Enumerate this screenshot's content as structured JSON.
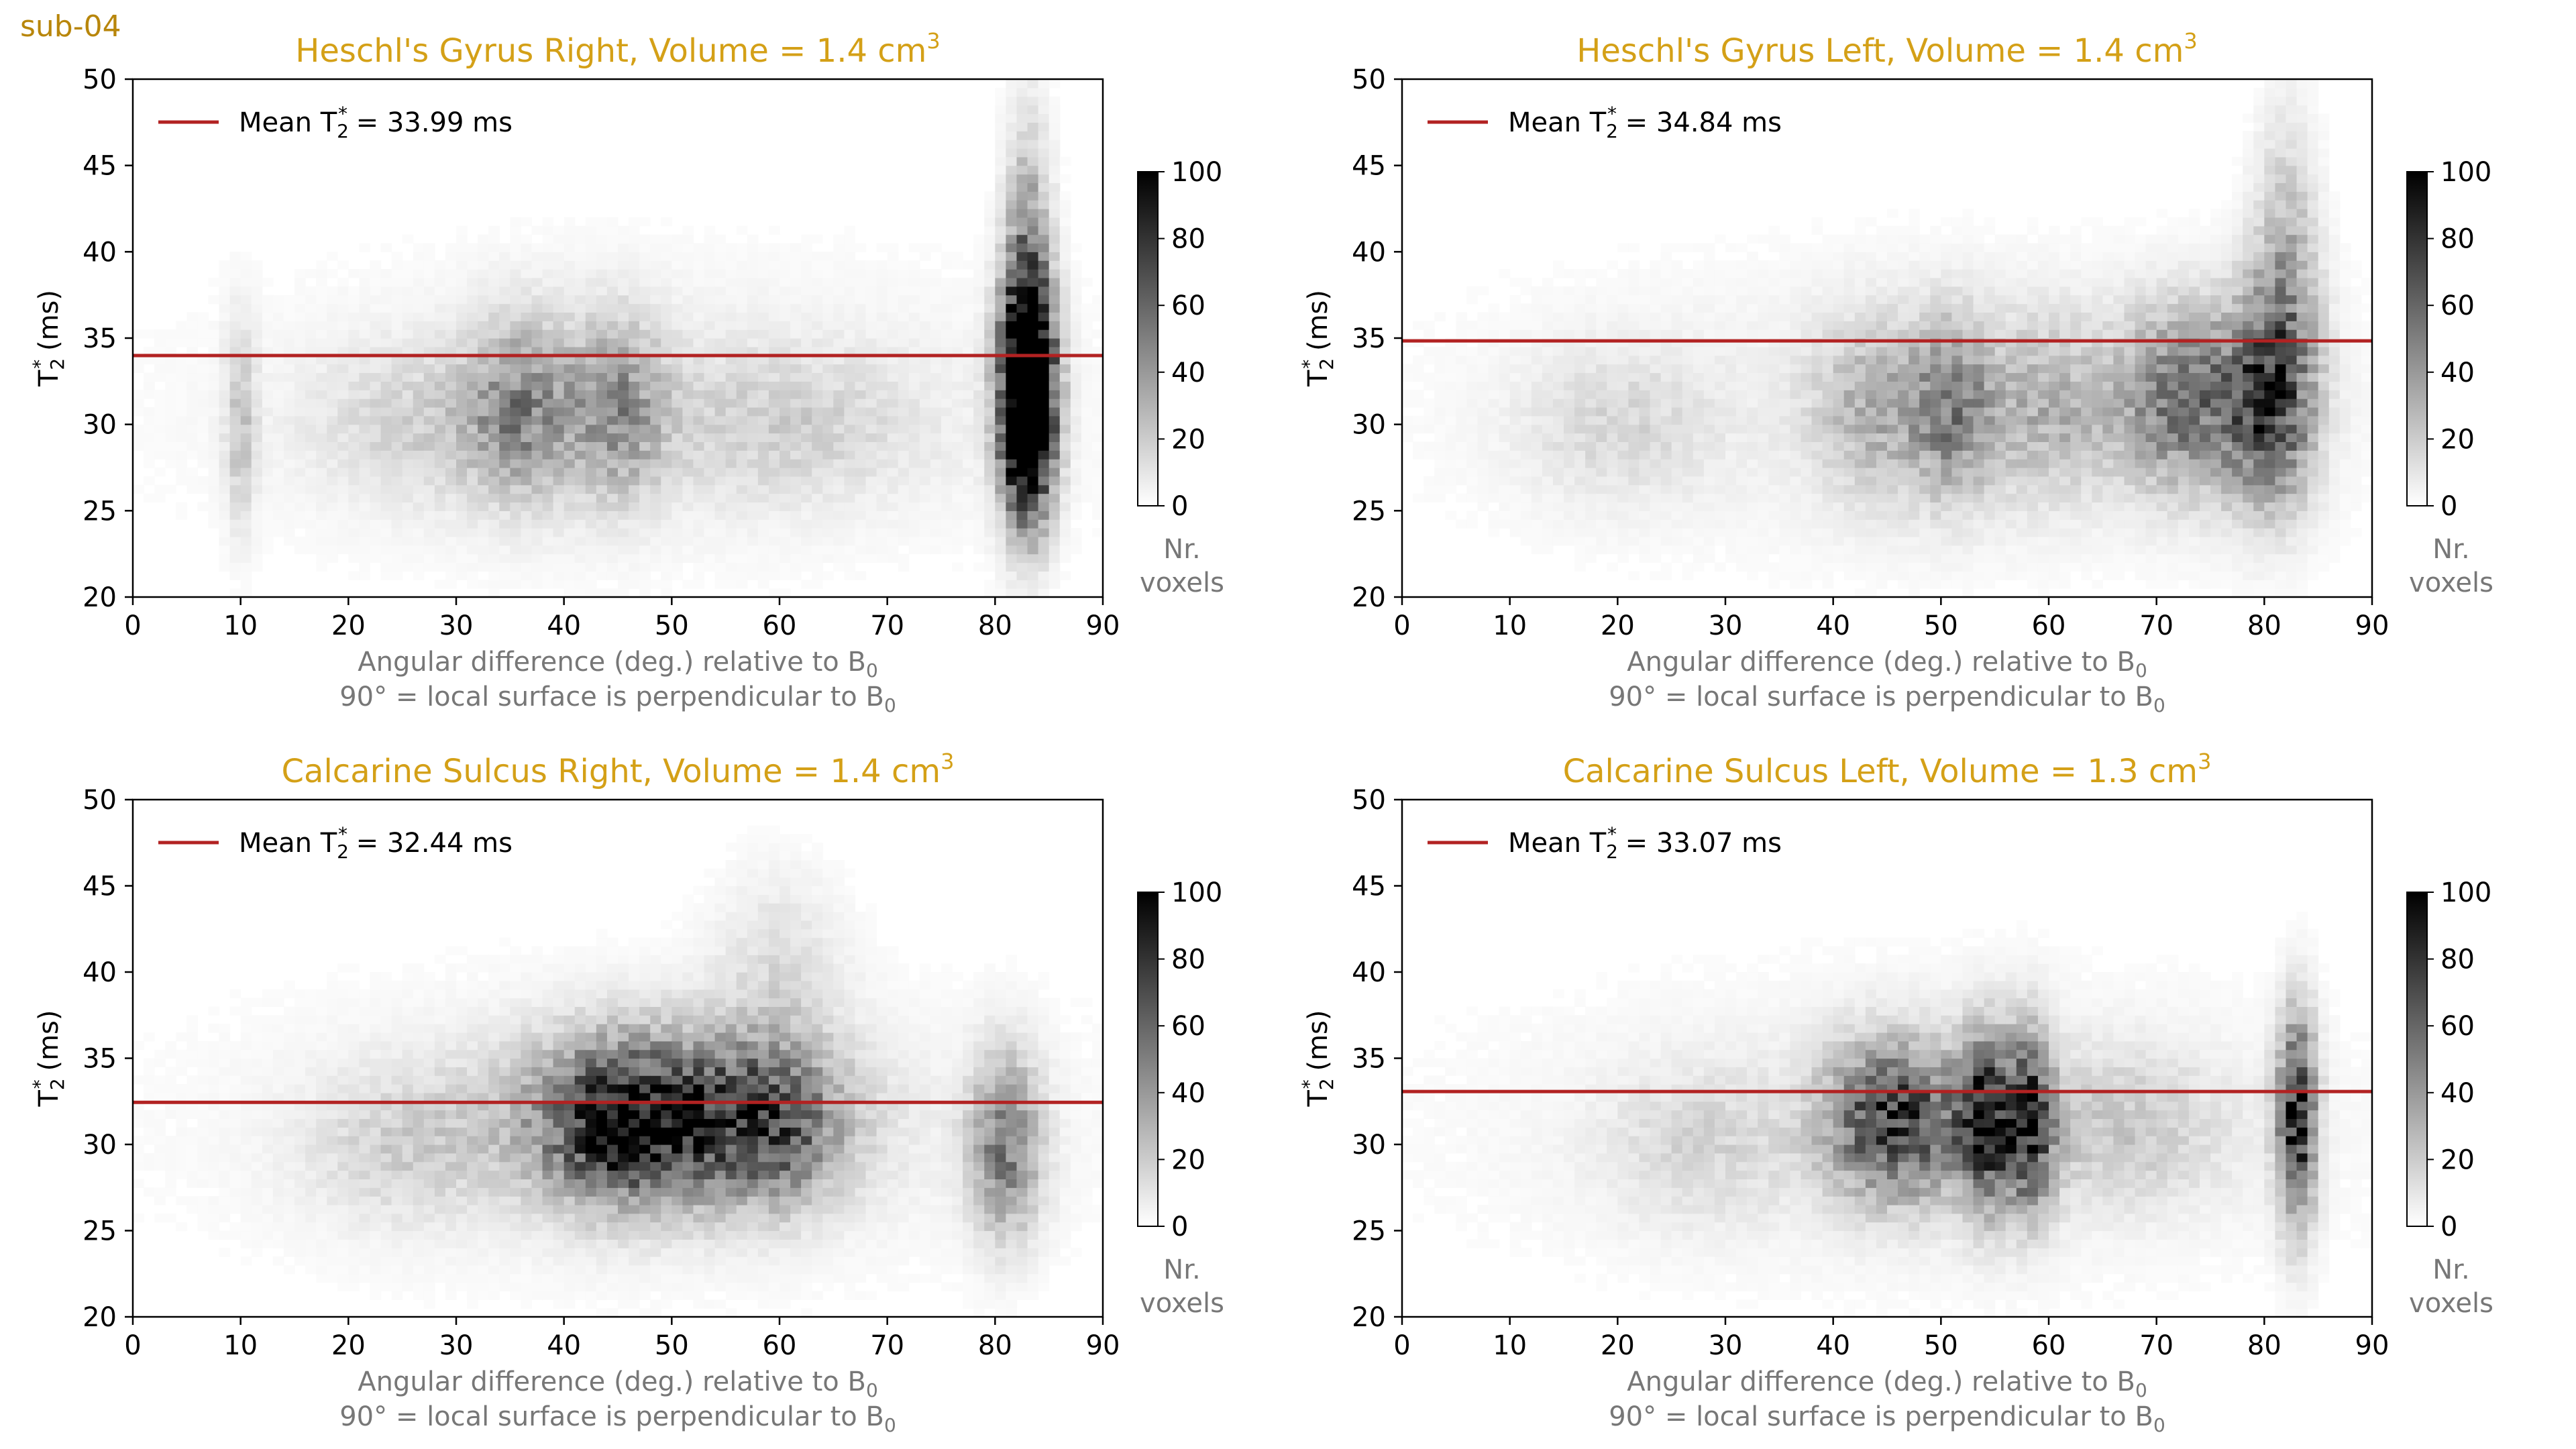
{
  "subject_label": "sub-04",
  "colors": {
    "title": "#d4a017",
    "mean_line": "#b22222",
    "axis_label_gray": "#777777",
    "axis": "#000000"
  },
  "colorbar": {
    "ticks": [
      "0",
      "20",
      "40",
      "60",
      "80",
      "100"
    ],
    "label_line1": "Nr.",
    "label_line2": "voxels",
    "range": [
      0,
      100
    ]
  },
  "chart_data": [
    {
      "type": "heatmap",
      "title": "Heschl's Gyrus Right, Volume = 1.4 cm",
      "title_sup": "3",
      "xlabel_line1": "Angular difference (deg.) relative to B",
      "xlabel_line1_sub": "0",
      "xlabel_line2": "90° = local surface is perpendicular to B",
      "xlabel_line2_sub": "0",
      "ylabel": "T",
      "ylabel_sub": "2",
      "ylabel_sup": "*",
      "ylabel_unit": " (ms)",
      "xlim": [
        0,
        90
      ],
      "ylim": [
        20,
        50
      ],
      "xticks": [
        "0",
        "10",
        "20",
        "30",
        "40",
        "50",
        "60",
        "70",
        "80",
        "90"
      ],
      "yticks": [
        "20",
        "25",
        "30",
        "35",
        "40",
        "45",
        "50"
      ],
      "mean_t2": 33.99,
      "legend_prefix": "Mean T",
      "legend_sub": "2",
      "legend_sup": "*",
      "legend_value": " = 33.99 ms",
      "blobs": [
        {
          "x": 83,
          "y": 31.5,
          "sx": 1.6,
          "sy": 4.2,
          "w": 190
        },
        {
          "x": 83,
          "y": 38,
          "sx": 1.4,
          "sy": 6,
          "w": 45
        },
        {
          "x": 36,
          "y": 31,
          "sx": 3.5,
          "sy": 3.5,
          "w": 38
        },
        {
          "x": 45,
          "y": 31,
          "sx": 3,
          "sy": 3.5,
          "w": 36
        },
        {
          "x": 10,
          "y": 30,
          "sx": 1,
          "sy": 4,
          "w": 20
        },
        {
          "x": 27,
          "y": 30,
          "sx": 7,
          "sy": 3,
          "w": 14
        },
        {
          "x": 60,
          "y": 30,
          "sx": 9,
          "sy": 3,
          "w": 14
        }
      ]
    },
    {
      "type": "heatmap",
      "title": "Heschl's Gyrus Left, Volume = 1.4 cm",
      "title_sup": "3",
      "xlabel_line1": "Angular difference (deg.) relative to B",
      "xlabel_line1_sub": "0",
      "xlabel_line2": "90° = local surface is perpendicular to B",
      "xlabel_line2_sub": "0",
      "ylabel": "T",
      "ylabel_sub": "2",
      "ylabel_sup": "*",
      "ylabel_unit": " (ms)",
      "xlim": [
        0,
        90
      ],
      "ylim": [
        20,
        50
      ],
      "xticks": [
        "0",
        "10",
        "20",
        "30",
        "40",
        "50",
        "60",
        "70",
        "80",
        "90"
      ],
      "yticks": [
        "20",
        "25",
        "30",
        "35",
        "40",
        "45",
        "50"
      ],
      "mean_t2": 34.84,
      "legend_prefix": "Mean T",
      "legend_sub": "2",
      "legend_sup": "*",
      "legend_value": " = 34.84 ms",
      "blobs": [
        {
          "x": 80,
          "y": 31.5,
          "sx": 3,
          "sy": 4,
          "w": 70
        },
        {
          "x": 72,
          "y": 31.5,
          "sx": 3.5,
          "sy": 3.5,
          "w": 50
        },
        {
          "x": 82,
          "y": 38,
          "sx": 2,
          "sy": 6,
          "w": 30
        },
        {
          "x": 51,
          "y": 31,
          "sx": 2.5,
          "sy": 3.5,
          "w": 38
        },
        {
          "x": 44,
          "y": 31,
          "sx": 4,
          "sy": 3.5,
          "w": 26
        },
        {
          "x": 60,
          "y": 31,
          "sx": 5,
          "sy": 3.5,
          "w": 26
        },
        {
          "x": 20,
          "y": 30,
          "sx": 6,
          "sy": 3,
          "w": 12
        }
      ]
    },
    {
      "type": "heatmap",
      "title": "Calcarine Sulcus Right, Volume = 1.4 cm",
      "title_sup": "3",
      "xlabel_line1": "Angular difference (deg.) relative to B",
      "xlabel_line1_sub": "0",
      "xlabel_line2": "90° = local surface is perpendicular to B",
      "xlabel_line2_sub": "0",
      "ylabel": "T",
      "ylabel_sub": "2",
      "ylabel_sup": "*",
      "ylabel_unit": " (ms)",
      "xlim": [
        0,
        90
      ],
      "ylim": [
        20,
        50
      ],
      "xticks": [
        "0",
        "10",
        "20",
        "30",
        "40",
        "50",
        "60",
        "70",
        "80",
        "90"
      ],
      "yticks": [
        "20",
        "25",
        "30",
        "35",
        "40",
        "45",
        "50"
      ],
      "mean_t2": 32.44,
      "legend_prefix": "Mean T",
      "legend_sub": "2",
      "legend_sup": "*",
      "legend_value": " = 32.44 ms",
      "blobs": [
        {
          "x": 50,
          "y": 31.5,
          "sx": 9,
          "sy": 3.2,
          "w": 80
        },
        {
          "x": 44,
          "y": 31,
          "sx": 3.5,
          "sy": 3,
          "w": 30
        },
        {
          "x": 60,
          "y": 31,
          "sx": 3.5,
          "sy": 3,
          "w": 30
        },
        {
          "x": 81,
          "y": 30,
          "sx": 2.2,
          "sy": 3.5,
          "w": 50
        },
        {
          "x": 25,
          "y": 30,
          "sx": 6,
          "sy": 3,
          "w": 14
        },
        {
          "x": 60,
          "y": 40,
          "sx": 4,
          "sy": 4,
          "w": 12
        }
      ]
    },
    {
      "type": "heatmap",
      "title": "Calcarine Sulcus Left, Volume = 1.3 cm",
      "title_sup": "3",
      "xlabel_line1": "Angular difference (deg.) relative to B",
      "xlabel_line1_sub": "0",
      "xlabel_line2": "90° = local surface is perpendicular to B",
      "xlabel_line2_sub": "0",
      "ylabel": "T",
      "ylabel_sub": "2",
      "ylabel_sup": "*",
      "ylabel_unit": " (ms)",
      "xlim": [
        0,
        90
      ],
      "ylim": [
        20,
        50
      ],
      "xticks": [
        "0",
        "10",
        "20",
        "30",
        "40",
        "50",
        "60",
        "70",
        "80",
        "90"
      ],
      "yticks": [
        "20",
        "25",
        "30",
        "35",
        "40",
        "45",
        "50"
      ],
      "mean_t2": 33.07,
      "legend_prefix": "Mean T",
      "legend_sub": "2",
      "legend_sup": "*",
      "legend_value": " = 33.07 ms",
      "blobs": [
        {
          "x": 45,
          "y": 31.5,
          "sx": 4,
          "sy": 3,
          "w": 60
        },
        {
          "x": 54,
          "y": 31.5,
          "sx": 1.5,
          "sy": 3.5,
          "w": 60
        },
        {
          "x": 58,
          "y": 31.5,
          "sx": 1.6,
          "sy": 3.5,
          "w": 70
        },
        {
          "x": 52,
          "y": 31,
          "sx": 6,
          "sy": 3,
          "w": 25
        },
        {
          "x": 83,
          "y": 31.5,
          "sx": 1.2,
          "sy": 4,
          "w": 85
        },
        {
          "x": 68,
          "y": 31,
          "sx": 6,
          "sy": 3,
          "w": 16
        },
        {
          "x": 28,
          "y": 30,
          "sx": 6,
          "sy": 3,
          "w": 12
        }
      ]
    }
  ]
}
